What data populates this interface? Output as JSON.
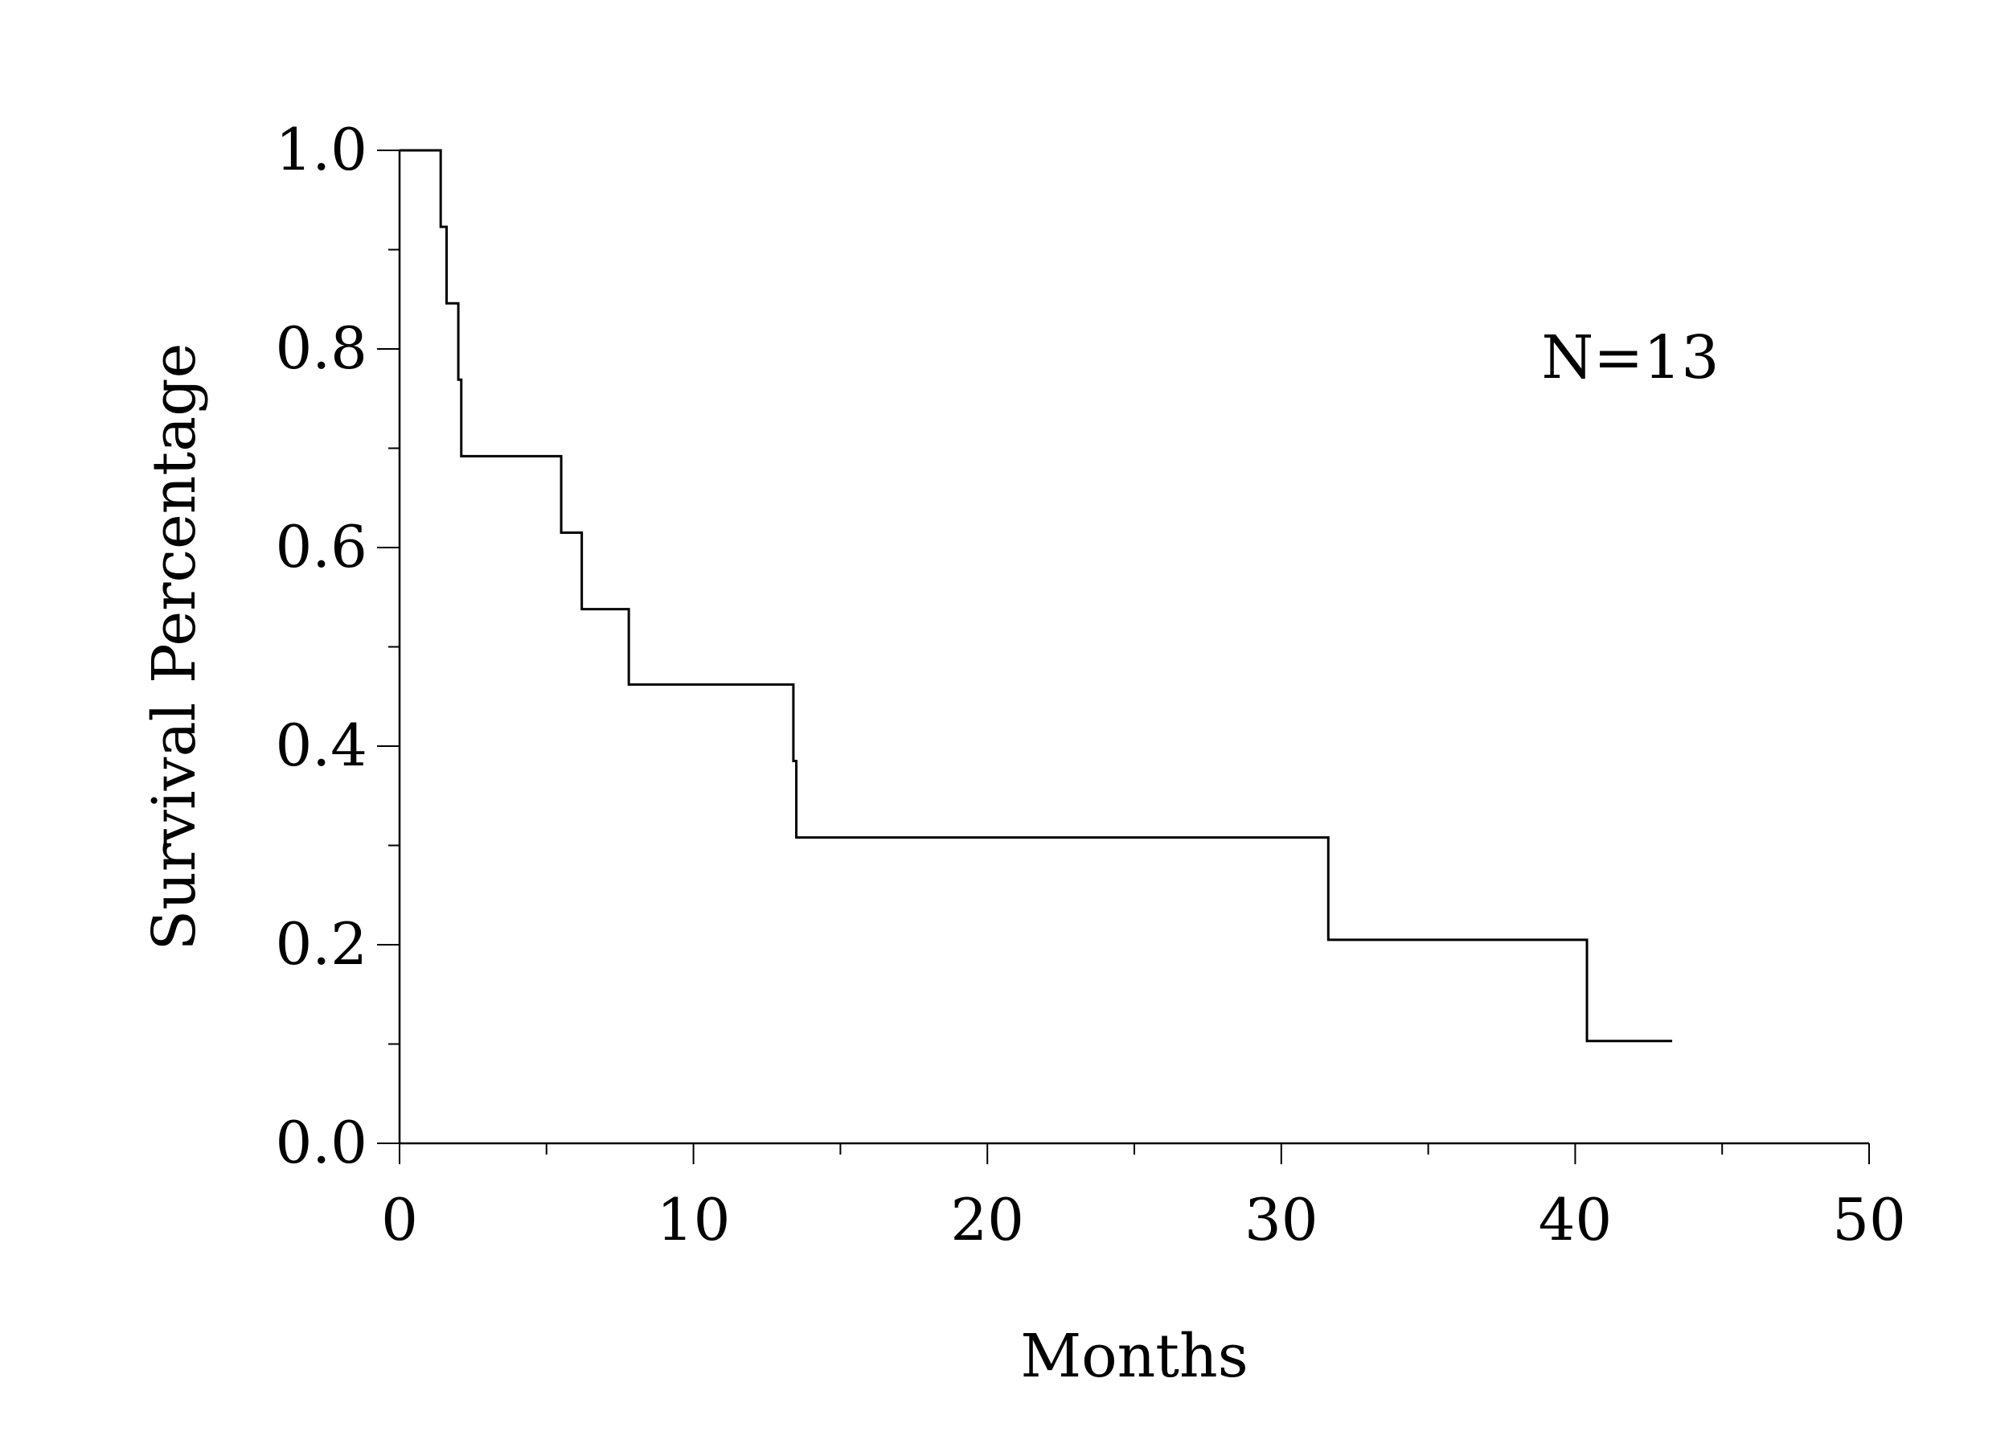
{
  "chart_data": {
    "type": "line",
    "style": "step",
    "title": "",
    "xlabel": "Months",
    "ylabel": "Survival Percentage",
    "xlim": [
      0,
      50
    ],
    "ylim": [
      0,
      1.0
    ],
    "xticks": [
      0,
      10,
      20,
      30,
      40,
      50
    ],
    "xtick_labels": [
      "0",
      "10",
      "20",
      "30",
      "40",
      "50"
    ],
    "yticks": [
      0.0,
      0.2,
      0.4,
      0.6,
      0.8,
      1.0
    ],
    "ytick_labels": [
      "0.0",
      "0.2",
      "0.4",
      "0.6",
      "0.8",
      "1.0"
    ],
    "x_minor_step": 5,
    "y_minor_step": 0.1,
    "grid": false,
    "annotation": "N=13",
    "series": [
      {
        "x": [
          0,
          1.4,
          1.6,
          2.0,
          2.1,
          5.5,
          6.2,
          7.8,
          13.4,
          13.5,
          31.6,
          40.4,
          43.3
        ],
        "y": [
          1.0,
          0.923,
          0.846,
          0.769,
          0.692,
          0.615,
          0.538,
          0.462,
          0.385,
          0.308,
          0.205,
          0.103,
          0.103
        ]
      }
    ]
  }
}
